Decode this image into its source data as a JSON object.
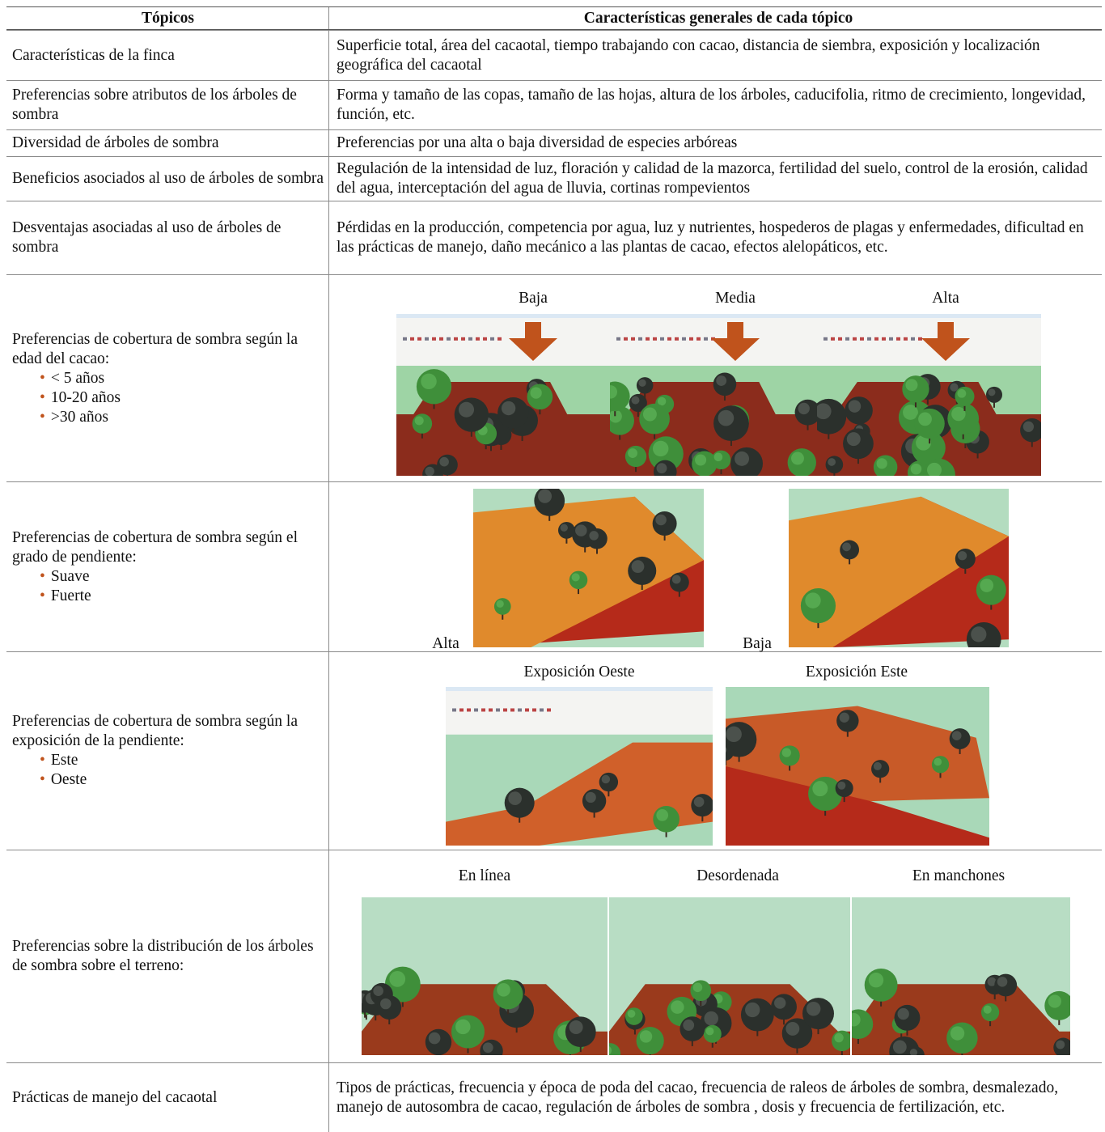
{
  "table": {
    "headers": [
      "Tópicos",
      "Características generales de cada tópico"
    ],
    "rows": [
      {
        "topic": "Características de la finca",
        "description": "Superficie total, área del cacaotal, tiempo trabajando con cacao, distancia de siembra, exposición y localización geográfica del cacaotal"
      },
      {
        "topic": "Preferencias sobre atributos de los árboles de sombra",
        "description": "Forma y tamaño de las copas, tamaño de las hojas, altura de los árboles, caducifolia, ritmo de crecimiento, longevidad, función, etc."
      },
      {
        "topic": "Diversidad de árboles de sombra",
        "description": "Preferencias por una alta o baja diversidad de especies arbóreas"
      },
      {
        "topic": "Beneficios asociados al uso de árboles de sombra",
        "description": "Regulación de la intensidad de luz, floración y calidad de la mazorca, fertilidad del suelo, control de la erosión, calidad del agua, interceptación del agua de lluvia, cortinas rompevientos"
      },
      {
        "topic": "Desventajas asociadas al uso de árboles de sombra",
        "description": "Pérdidas en la producción, competencia por agua, luz y nutrientes, hospederos de plagas y enfermedades, dificultad en las prácticas de manejo, daño mecánico a las plantas de cacao, efectos alelopáticos, etc."
      },
      {
        "topic": "Preferencias de cobertura de sombra según la edad del cacao:",
        "bullets": [
          "< 5 años",
          "10-20 años",
          ">30 años"
        ],
        "image_labels": [
          "Baja",
          "Media",
          "Alta"
        ]
      },
      {
        "topic": "Preferencias de cobertura de sombra según el grado de pendiente:",
        "bullets": [
          "Suave",
          "Fuerte"
        ],
        "image_labels": [
          "Alta",
          "Baja"
        ]
      },
      {
        "topic": "Preferencias de cobertura de sombra según la exposición de la pendiente:",
        "bullets": [
          "Este",
          "Oeste"
        ],
        "image_labels": [
          "Exposición Oeste",
          "Exposición Este"
        ]
      },
      {
        "topic": "Preferencias sobre la distribución de los árboles de sombra sobre el terreno:",
        "image_labels": [
          "En línea",
          "Desordenada",
          "En manchones"
        ]
      },
      {
        "topic": "Prácticas de manejo del cacaotal",
        "description": "Tipos de prácticas, frecuencia y época de poda del cacao, frecuencia de raleos de árboles de sombra, desmalezado, manejo de autosombra de cacao, regulación de árboles de sombra , dosis y frecuencia de fertilización, etc."
      }
    ]
  }
}
